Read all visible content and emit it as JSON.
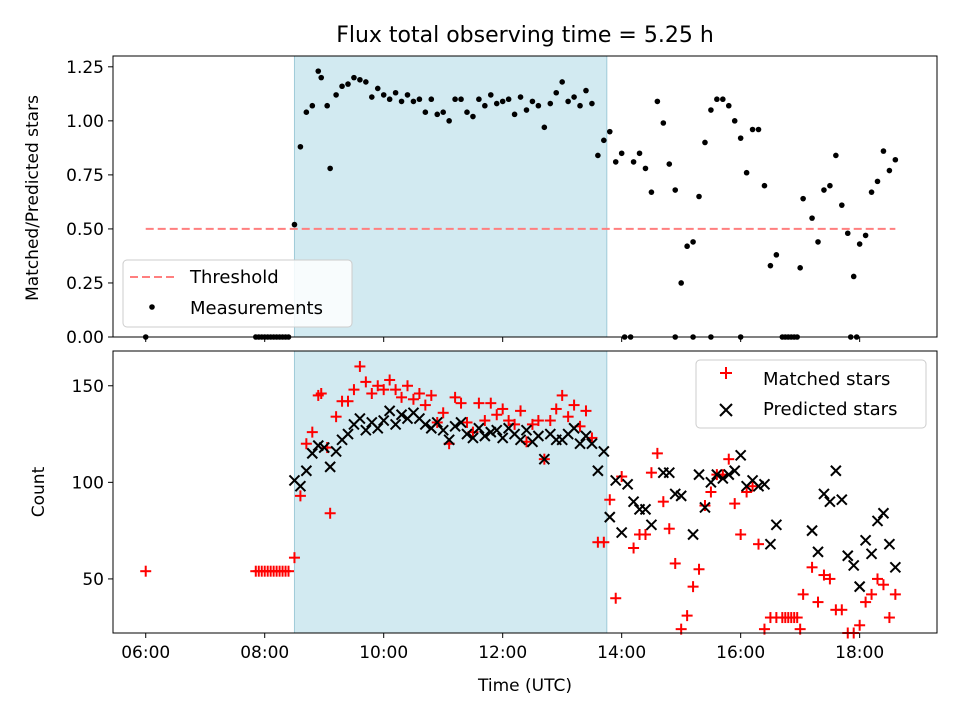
{
  "chart_data": [
    {
      "type": "scatter",
      "title": "Flux total observing time = 5.25 h",
      "xlabel": "",
      "ylabel": "Matched/Predicted stars",
      "xlim": [
        5.45,
        19.3
      ],
      "ylim": [
        0,
        1.3
      ],
      "yticks": [
        0.0,
        0.25,
        0.5,
        0.75,
        1.0,
        1.25
      ],
      "ytick_labels": [
        "0.00",
        "0.25",
        "0.50",
        "0.75",
        "1.00",
        "1.25"
      ],
      "shaded_region": {
        "x_start": 8.5,
        "x_end": 13.75,
        "color": "#add8e6"
      },
      "legend": {
        "placement": "lower-left",
        "entries": [
          "Threshold",
          "Measurements"
        ]
      },
      "series": [
        {
          "name": "Threshold",
          "style": "dashed-line",
          "color": "#ff7f7f",
          "x": [
            6.0,
            18.6
          ],
          "y": [
            0.5,
            0.5
          ]
        },
        {
          "name": "Measurements",
          "style": "dot",
          "color": "#000000",
          "x": [
            6.0,
            7.85,
            7.9,
            7.95,
            8.0,
            8.05,
            8.1,
            8.15,
            8.2,
            8.25,
            8.3,
            8.35,
            8.4,
            8.5,
            8.6,
            8.7,
            8.8,
            8.9,
            8.95,
            9.05,
            9.1,
            9.2,
            9.3,
            9.4,
            9.5,
            9.6,
            9.7,
            9.8,
            9.9,
            10.0,
            10.1,
            10.2,
            10.3,
            10.4,
            10.5,
            10.6,
            10.7,
            10.8,
            10.9,
            11.0,
            11.1,
            11.2,
            11.3,
            11.4,
            11.5,
            11.6,
            11.7,
            11.8,
            11.9,
            12.0,
            12.1,
            12.2,
            12.3,
            12.4,
            12.5,
            12.6,
            12.7,
            12.8,
            12.9,
            13.0,
            13.1,
            13.2,
            13.3,
            13.4,
            13.5,
            13.6,
            13.7,
            13.8,
            13.9,
            14.0,
            14.2,
            14.3,
            14.4,
            14.5,
            14.6,
            14.7,
            14.8,
            14.9,
            15.0,
            15.1,
            15.2,
            15.3,
            15.4,
            15.5,
            15.6,
            15.7,
            15.8,
            15.9,
            16.0,
            16.1,
            16.2,
            16.3,
            16.4,
            16.5,
            16.6,
            16.7,
            16.75,
            16.8,
            16.85,
            16.9,
            16.95,
            17.0,
            17.05,
            17.2,
            17.3,
            17.4,
            17.5,
            17.6,
            17.7,
            17.8,
            17.9,
            18.0,
            18.1,
            18.2,
            18.3,
            18.4,
            18.5,
            18.6,
            14.05,
            14.15,
            14.9,
            15.2,
            15.5,
            16.0,
            17.85,
            17.95
          ],
          "y": [
            0.0,
            0.0,
            0.0,
            0.0,
            0.0,
            0.0,
            0.0,
            0.0,
            0.0,
            0.0,
            0.0,
            0.0,
            0.0,
            0.52,
            0.88,
            1.04,
            1.07,
            1.23,
            1.2,
            1.07,
            0.78,
            1.12,
            1.16,
            1.17,
            1.2,
            1.19,
            1.18,
            1.11,
            1.15,
            1.12,
            1.1,
            1.13,
            1.09,
            1.12,
            1.09,
            1.1,
            1.04,
            1.1,
            1.03,
            1.04,
            1.0,
            1.1,
            1.1,
            1.04,
            1.02,
            1.1,
            1.07,
            1.12,
            1.08,
            1.09,
            1.1,
            1.03,
            1.11,
            1.05,
            1.09,
            1.07,
            0.97,
            1.08,
            1.13,
            1.18,
            1.09,
            1.11,
            1.07,
            1.14,
            1.08,
            0.84,
            0.91,
            0.95,
            0.81,
            0.85,
            0.81,
            0.85,
            0.78,
            0.67,
            1.09,
            0.99,
            0.8,
            0.68,
            0.25,
            0.42,
            0.44,
            0.65,
            0.9,
            1.05,
            1.1,
            1.1,
            1.07,
            1.0,
            0.92,
            0.76,
            0.96,
            0.96,
            0.7,
            0.33,
            0.38,
            0.0,
            0.0,
            0.0,
            0.0,
            0.0,
            0.0,
            0.32,
            0.64,
            0.55,
            0.44,
            0.68,
            0.7,
            0.84,
            0.61,
            0.48,
            0.28,
            0.43,
            0.47,
            0.67,
            0.72,
            0.86,
            0.77,
            0.82,
            0.0,
            0.0,
            0.0,
            0.0,
            0.0,
            0.0,
            0.0,
            0.0
          ]
        }
      ]
    },
    {
      "type": "scatter",
      "title": "",
      "xlabel": "Time (UTC)",
      "ylabel": "Count",
      "xlim": [
        5.45,
        19.3
      ],
      "ylim": [
        22,
        168
      ],
      "yticks": [
        50,
        100,
        150
      ],
      "ytick_labels": [
        "50",
        "100",
        "150"
      ],
      "xticks": [
        6,
        8,
        10,
        12,
        14,
        16,
        18
      ],
      "xtick_labels": [
        "06:00",
        "08:00",
        "10:00",
        "12:00",
        "14:00",
        "16:00",
        "18:00"
      ],
      "shaded_region": {
        "x_start": 8.5,
        "x_end": 13.75,
        "color": "#add8e6"
      },
      "legend": {
        "placement": "upper-right",
        "entries": [
          "Matched stars",
          "Predicted stars"
        ]
      },
      "series": [
        {
          "name": "Matched stars",
          "marker": "plus",
          "color": "#ff0000",
          "x": [
            6.0,
            7.85,
            7.9,
            7.95,
            8.0,
            8.05,
            8.1,
            8.15,
            8.2,
            8.25,
            8.3,
            8.35,
            8.4,
            8.5,
            8.6,
            8.7,
            8.8,
            8.9,
            8.95,
            9.05,
            9.1,
            9.2,
            9.3,
            9.4,
            9.5,
            9.6,
            9.7,
            9.8,
            9.9,
            10.0,
            10.1,
            10.2,
            10.3,
            10.4,
            10.5,
            10.6,
            10.7,
            10.8,
            10.9,
            11.0,
            11.1,
            11.2,
            11.3,
            11.4,
            11.5,
            11.6,
            11.7,
            11.8,
            11.9,
            12.0,
            12.1,
            12.2,
            12.3,
            12.4,
            12.5,
            12.6,
            12.7,
            12.8,
            12.9,
            13.0,
            13.1,
            13.2,
            13.3,
            13.4,
            13.5,
            13.6,
            13.7,
            13.8,
            13.9,
            14.0,
            14.2,
            14.3,
            14.4,
            14.5,
            14.6,
            14.7,
            14.8,
            14.9,
            15.0,
            15.1,
            15.2,
            15.3,
            15.4,
            15.5,
            15.6,
            15.7,
            15.8,
            15.9,
            16.0,
            16.1,
            16.2,
            16.3,
            16.4,
            16.5,
            16.6,
            16.7,
            16.75,
            16.8,
            16.85,
            16.9,
            16.95,
            17.0,
            17.05,
            17.2,
            17.3,
            17.4,
            17.5,
            17.6,
            17.7,
            17.8,
            17.9,
            18.0,
            18.1,
            18.2,
            18.3,
            18.4,
            18.5,
            18.6
          ],
          "y": [
            54,
            54,
            54,
            54,
            54,
            54,
            54,
            54,
            54,
            54,
            54,
            54,
            54,
            61,
            93,
            120,
            126,
            145,
            146,
            118,
            84,
            134,
            142,
            142,
            148,
            160,
            152,
            146,
            150,
            148,
            153,
            148,
            144,
            150,
            143,
            146,
            140,
            145,
            131,
            136,
            120,
            144,
            141,
            131,
            126,
            141,
            132,
            141,
            135,
            138,
            132,
            130,
            137,
            121,
            130,
            132,
            112,
            132,
            138,
            145,
            134,
            140,
            129,
            137,
            123,
            69,
            69,
            91,
            40,
            103,
            66,
            73,
            73,
            105,
            115,
            90,
            76,
            58,
            24,
            31,
            46,
            55,
            88,
            95,
            104,
            104,
            112,
            89,
            73,
            95,
            98,
            68,
            24,
            30,
            30,
            30,
            30,
            30,
            30,
            30,
            30,
            24,
            42,
            56,
            38,
            52,
            50,
            34,
            34,
            22,
            22,
            26,
            38,
            42,
            50,
            47,
            30,
            42
          ]
        },
        {
          "name": "Predicted stars",
          "marker": "x",
          "color": "#000000",
          "x": [
            8.5,
            8.6,
            8.7,
            8.8,
            8.9,
            9.0,
            9.1,
            9.2,
            9.3,
            9.4,
            9.5,
            9.6,
            9.7,
            9.8,
            9.9,
            10.0,
            10.1,
            10.2,
            10.3,
            10.4,
            10.5,
            10.6,
            10.7,
            10.8,
            10.9,
            11.0,
            11.1,
            11.2,
            11.3,
            11.4,
            11.5,
            11.6,
            11.7,
            11.8,
            11.9,
            12.0,
            12.1,
            12.2,
            12.3,
            12.4,
            12.5,
            12.6,
            12.7,
            12.8,
            12.9,
            13.0,
            13.1,
            13.2,
            13.3,
            13.4,
            13.5,
            13.6,
            13.7,
            13.8,
            13.9,
            14.0,
            14.1,
            14.2,
            14.3,
            14.4,
            14.5,
            14.7,
            14.8,
            14.9,
            15.0,
            15.2,
            15.3,
            15.4,
            15.5,
            15.6,
            15.7,
            15.8,
            15.9,
            16.0,
            16.1,
            16.2,
            16.3,
            16.4,
            16.5,
            16.6,
            17.2,
            17.3,
            17.4,
            17.5,
            17.6,
            17.7,
            17.8,
            17.9,
            18.0,
            18.1,
            18.2,
            18.3,
            18.4,
            18.5,
            18.6
          ],
          "y": [
            101,
            98,
            106,
            115,
            119,
            118,
            108,
            116,
            122,
            125,
            130,
            133,
            127,
            131,
            128,
            132,
            137,
            130,
            135,
            133,
            136,
            133,
            130,
            128,
            131,
            127,
            122,
            129,
            131,
            125,
            123,
            128,
            124,
            126,
            127,
            123,
            128,
            125,
            122,
            127,
            121,
            124,
            112,
            125,
            122,
            122,
            125,
            128,
            120,
            124,
            120,
            106,
            116,
            82,
            101,
            74,
            99,
            90,
            86,
            86,
            78,
            105,
            105,
            94,
            93,
            73,
            104,
            87,
            100,
            104,
            102,
            104,
            106,
            114,
            98,
            101,
            98,
            99,
            68,
            78,
            75,
            64,
            94,
            90,
            106,
            91,
            62,
            57,
            46,
            70,
            63,
            80,
            84,
            68,
            56
          ]
        }
      ]
    }
  ]
}
